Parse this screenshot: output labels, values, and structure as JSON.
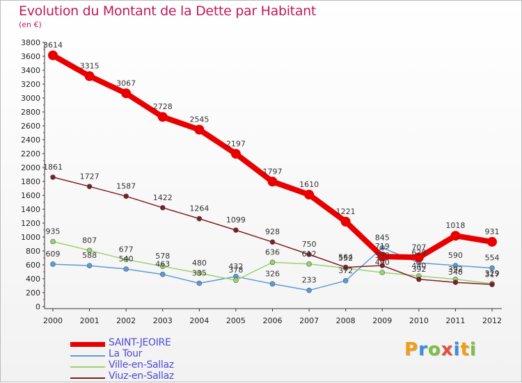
{
  "title": "Evolution du Montant de la Dette par Habitant",
  "unit": "(en €)",
  "brand": {
    "text": "Proxiti",
    "letter_colors": [
      "#f39c12",
      "#3a8fd8",
      "#7fbf3f",
      "#e74c3c",
      "#3a8fd8",
      "#f39c12",
      "#7fbf3f"
    ]
  },
  "chart_data": {
    "type": "line",
    "x": [
      "2000",
      "2001",
      "2002",
      "2003",
      "2004",
      "2005",
      "2006",
      "2007",
      "2008",
      "2009",
      "2010",
      "2011",
      "2012"
    ],
    "ylim": [
      0,
      3800
    ],
    "yticks": [
      "0",
      "200",
      "400",
      "600",
      "800",
      "1000",
      "1200",
      "1400",
      "1600",
      "1800",
      "2000",
      "2200",
      "2400",
      "2600",
      "2800",
      "3000",
      "3200",
      "3400",
      "3600",
      "3800"
    ],
    "grid": false,
    "legend_position": "bottom-left",
    "series": [
      {
        "name": "SAINT-JEOIRE",
        "color": "#e80000",
        "values": [
          3614,
          3315,
          3067,
          2728,
          2545,
          2197,
          1797,
          1610,
          1221,
          719,
          707,
          1018,
          931
        ],
        "labels": [
          "3614",
          "3315",
          "3067",
          "2728",
          "2545",
          "2197",
          "1797",
          "1610",
          "1221",
          "719",
          "707",
          "1018",
          "931"
        ]
      },
      {
        "name": "La Tour",
        "color": "#5b9bd5",
        "values": [
          609,
          588,
          540,
          463,
          335,
          432,
          326,
          233,
          372,
          845,
          629,
          590,
          554
        ],
        "labels": [
          "609",
          "588",
          "540",
          "463",
          "335",
          "432",
          "326",
          "233",
          "372",
          "845",
          "629",
          "590",
          "554"
        ]
      },
      {
        "name": "Ville-en-Sallaz",
        "color": "#99d36b",
        "values": [
          935,
          807,
          677,
          578,
          480,
          378,
          636,
          612,
          552,
          490,
          440,
          392,
          329
        ],
        "labels": [
          "935",
          "807",
          "677",
          "578",
          "480",
          "378",
          "636",
          "612",
          "552",
          "490",
          "440",
          "392",
          "329"
        ]
      },
      {
        "name": "Viuz-en-Sallaz",
        "color": "#7b1f24",
        "values": [
          1861,
          1727,
          1587,
          1422,
          1264,
          1099,
          928,
          750,
          564,
          590,
          392,
          348,
          317
        ],
        "labels": [
          "1861",
          "1727",
          "1587",
          "1422",
          "1264",
          "1099",
          "928",
          "750",
          "564",
          "590",
          "392",
          "348",
          "317"
        ]
      }
    ]
  }
}
